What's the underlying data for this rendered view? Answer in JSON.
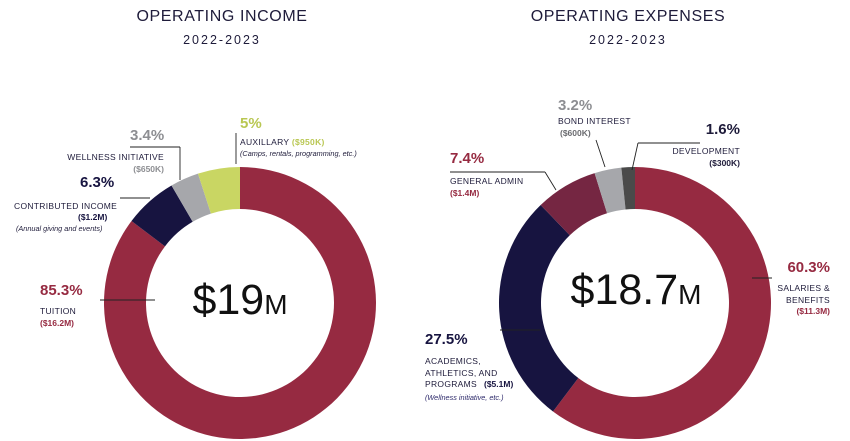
{
  "chart_data": [
    {
      "type": "pie",
      "title": "OPERATING INCOME",
      "subtitle": "2022-2023",
      "center_value": "$19",
      "center_unit": "M",
      "slices": [
        {
          "pct_label": "85.3%",
          "value": 85.3,
          "label": "TUITION",
          "amount": "($16.2M)",
          "note": "",
          "color": "#962a41"
        },
        {
          "pct_label": "6.3%",
          "value": 6.3,
          "label": "CONTRIBUTED INCOME",
          "amount": "($1.2M)",
          "note": "(Annual giving and events)",
          "color": "#171440"
        },
        {
          "pct_label": "3.4%",
          "value": 3.4,
          "label": "WELLNESS INITIATIVE",
          "amount": "($650K)",
          "note": "",
          "color": "#a6a7ab"
        },
        {
          "pct_label": "5%",
          "value": 5.0,
          "label": "AUXILLARY",
          "amount": "($950K)",
          "note": "(Camps, rentals, programming, etc.)",
          "color": "#c9d663"
        }
      ]
    },
    {
      "type": "pie",
      "title": "OPERATING EXPENSES",
      "subtitle": "2022-2023",
      "center_value": "$18.7",
      "center_unit": "M",
      "slices": [
        {
          "pct_label": "60.3%",
          "value": 60.3,
          "label": "SALARIES & BENEFITS",
          "amount": "($11.3M)",
          "note": "",
          "color": "#962a41"
        },
        {
          "pct_label": "27.5%",
          "value": 27.5,
          "label": "ACADEMICS, ATHLETICS, AND PROGRAMS",
          "amount": "($5.1M)",
          "note": "(Wellness initiative, etc.)",
          "color": "#171440"
        },
        {
          "pct_label": "7.4%",
          "value": 7.4,
          "label": "GENERAL ADMIN",
          "amount": "($1.4M)",
          "note": "",
          "color": "#752642"
        },
        {
          "pct_label": "3.2%",
          "value": 3.2,
          "label": "BOND INTEREST",
          "amount": "($600K)",
          "note": "",
          "color": "#a6a7ab"
        },
        {
          "pct_label": "1.6%",
          "value": 1.6,
          "label": "DEVELOPMENT",
          "amount": "($300K)",
          "note": "",
          "color": "#4a4a4a"
        }
      ]
    }
  ]
}
